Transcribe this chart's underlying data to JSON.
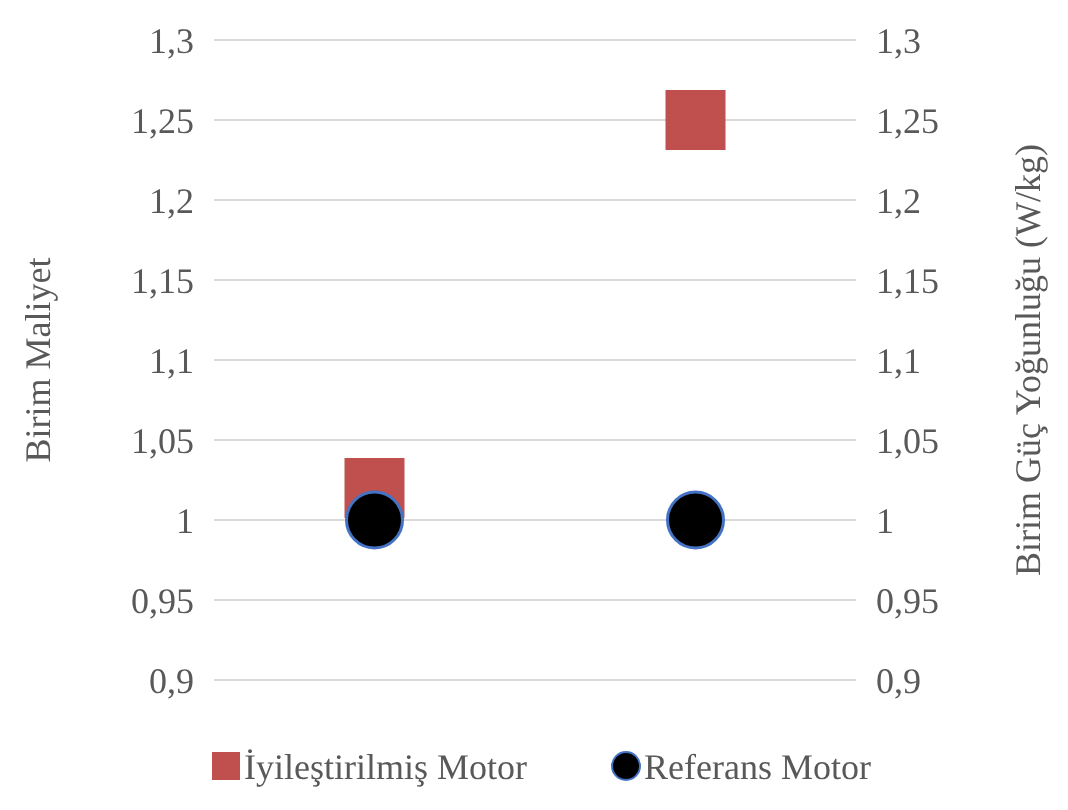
{
  "chart_data": {
    "type": "scatter",
    "ylabel": "Birim Maliyet",
    "y2label": "Birim Güç Yoğunluğu (W/kg)",
    "categories": [
      null,
      null
    ],
    "series": [
      {
        "name": "İyileştirilmiş Motor",
        "color": "#c0504d",
        "marker": "square",
        "values": [
          1.02,
          1.25
        ]
      },
      {
        "name": "Referans Motor",
        "color": "#000000",
        "marker": "circle",
        "values": [
          1.0,
          1.0
        ]
      }
    ],
    "ylim": [
      0.9,
      1.3
    ],
    "yticks": [
      {
        "value": 0.9,
        "label": "0,9"
      },
      {
        "value": 0.95,
        "label": "0,95"
      },
      {
        "value": 1,
        "label": "1"
      },
      {
        "value": 1.05,
        "label": "1,05"
      },
      {
        "value": 1.1,
        "label": "1,1"
      },
      {
        "value": 1.15,
        "label": "1,15"
      },
      {
        "value": 1.2,
        "label": "1,2"
      },
      {
        "value": 1.25,
        "label": "1,25"
      },
      {
        "value": 1.3,
        "label": "1,3"
      }
    ],
    "y2lim": [
      0.9,
      1.3
    ],
    "y2ticks": [
      {
        "value": 0.9,
        "label": "0,9"
      },
      {
        "value": 0.95,
        "label": "0,95"
      },
      {
        "value": 1,
        "label": "1"
      },
      {
        "value": 1.05,
        "label": "1,05"
      },
      {
        "value": 1.1,
        "label": "1,1"
      },
      {
        "value": 1.15,
        "label": "1,15"
      },
      {
        "value": 1.2,
        "label": "1,2"
      },
      {
        "value": 1.25,
        "label": "1,25"
      },
      {
        "value": 1.3,
        "label": "1,3"
      }
    ],
    "grid": "y",
    "legend": "bottom"
  }
}
